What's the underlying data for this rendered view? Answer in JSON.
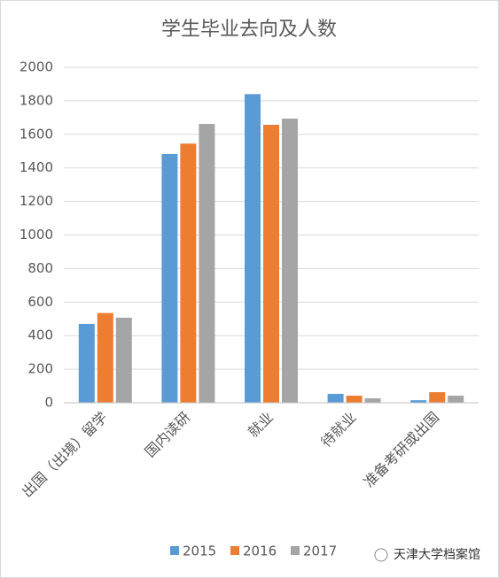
{
  "chart_data": {
    "type": "bar",
    "title": "学生毕业去向及人数",
    "categories": [
      "出国（出境）留学",
      "国内读研",
      "就业",
      "待就业",
      "准备考研或出国"
    ],
    "series": [
      {
        "name": "2015",
        "color": "#5b9bd5",
        "values": [
          470,
          1483,
          1840,
          53,
          15
        ]
      },
      {
        "name": "2016",
        "color": "#ed7d31",
        "values": [
          535,
          1545,
          1657,
          42,
          63
        ]
      },
      {
        "name": "2017",
        "color": "#a5a5a5",
        "values": [
          507,
          1662,
          1694,
          26,
          42
        ]
      }
    ],
    "ylim": [
      0,
      2000
    ],
    "yticks": [
      0,
      200,
      400,
      600,
      800,
      1000,
      1200,
      1400,
      1600,
      1800,
      2000
    ],
    "grid": true,
    "legend": "bottom",
    "watermark": "天津大学档案馆"
  }
}
